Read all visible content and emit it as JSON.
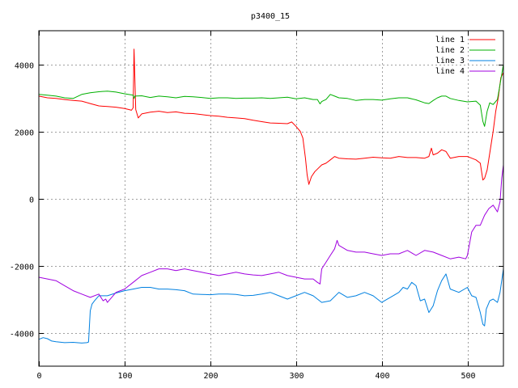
{
  "chart_data": {
    "type": "line",
    "title": "p3400_15",
    "xlabel": "",
    "ylabel": "",
    "xlim": [
      0,
      542
    ],
    "ylim": [
      -5000,
      5000
    ],
    "x_ticks": [
      0,
      100,
      200,
      300,
      400,
      500
    ],
    "y_ticks": [
      -4000,
      -2000,
      0,
      2000,
      4000
    ],
    "grid": true,
    "legend_position": "top-right",
    "series": [
      {
        "name": "line 1",
        "color": "#ff0000",
        "points": [
          [
            0,
            3050
          ],
          [
            10,
            3000
          ],
          [
            20,
            2980
          ],
          [
            30,
            2950
          ],
          [
            40,
            2920
          ],
          [
            50,
            2900
          ],
          [
            60,
            2830
          ],
          [
            70,
            2760
          ],
          [
            80,
            2740
          ],
          [
            90,
            2720
          ],
          [
            100,
            2680
          ],
          [
            105,
            2650
          ],
          [
            108,
            2630
          ],
          [
            110,
            2700
          ],
          [
            111,
            4450
          ],
          [
            112,
            3600
          ],
          [
            113,
            2650
          ],
          [
            116,
            2400
          ],
          [
            120,
            2520
          ],
          [
            130,
            2570
          ],
          [
            140,
            2600
          ],
          [
            150,
            2560
          ],
          [
            160,
            2580
          ],
          [
            170,
            2540
          ],
          [
            180,
            2530
          ],
          [
            190,
            2500
          ],
          [
            200,
            2470
          ],
          [
            210,
            2450
          ],
          [
            220,
            2420
          ],
          [
            230,
            2400
          ],
          [
            240,
            2380
          ],
          [
            250,
            2330
          ],
          [
            260,
            2290
          ],
          [
            270,
            2250
          ],
          [
            280,
            2240
          ],
          [
            290,
            2230
          ],
          [
            295,
            2280
          ],
          [
            300,
            2150
          ],
          [
            305,
            2000
          ],
          [
            308,
            1800
          ],
          [
            311,
            1200
          ],
          [
            313,
            700
          ],
          [
            315,
            420
          ],
          [
            318,
            650
          ],
          [
            322,
            800
          ],
          [
            326,
            900
          ],
          [
            330,
            1000
          ],
          [
            335,
            1050
          ],
          [
            340,
            1150
          ],
          [
            345,
            1250
          ],
          [
            350,
            1200
          ],
          [
            360,
            1180
          ],
          [
            370,
            1170
          ],
          [
            380,
            1200
          ],
          [
            390,
            1230
          ],
          [
            400,
            1210
          ],
          [
            410,
            1200
          ],
          [
            420,
            1250
          ],
          [
            430,
            1220
          ],
          [
            440,
            1220
          ],
          [
            450,
            1200
          ],
          [
            455,
            1250
          ],
          [
            458,
            1500
          ],
          [
            460,
            1300
          ],
          [
            465,
            1350
          ],
          [
            470,
            1450
          ],
          [
            475,
            1400
          ],
          [
            480,
            1200
          ],
          [
            490,
            1250
          ],
          [
            500,
            1250
          ],
          [
            505,
            1200
          ],
          [
            510,
            1150
          ],
          [
            515,
            1050
          ],
          [
            518,
            550
          ],
          [
            520,
            600
          ],
          [
            523,
            850
          ],
          [
            526,
            1350
          ],
          [
            530,
            2000
          ],
          [
            533,
            2600
          ],
          [
            536,
            3000
          ],
          [
            539,
            3600
          ],
          [
            542,
            3750
          ]
        ]
      },
      {
        "name": "line 2",
        "color": "#00b000",
        "points": [
          [
            0,
            3100
          ],
          [
            10,
            3080
          ],
          [
            20,
            3050
          ],
          [
            30,
            3000
          ],
          [
            40,
            2980
          ],
          [
            50,
            3100
          ],
          [
            60,
            3150
          ],
          [
            70,
            3180
          ],
          [
            80,
            3200
          ],
          [
            90,
            3170
          ],
          [
            100,
            3120
          ],
          [
            110,
            3080
          ],
          [
            111,
            2980
          ],
          [
            112,
            3050
          ],
          [
            120,
            3060
          ],
          [
            130,
            3010
          ],
          [
            140,
            3050
          ],
          [
            150,
            3030
          ],
          [
            160,
            3000
          ],
          [
            170,
            3040
          ],
          [
            180,
            3030
          ],
          [
            190,
            3010
          ],
          [
            200,
            2980
          ],
          [
            210,
            3000
          ],
          [
            220,
            3000
          ],
          [
            230,
            2980
          ],
          [
            240,
            2990
          ],
          [
            250,
            2990
          ],
          [
            260,
            3000
          ],
          [
            270,
            2980
          ],
          [
            280,
            3000
          ],
          [
            290,
            3020
          ],
          [
            300,
            2970
          ],
          [
            310,
            3000
          ],
          [
            320,
            2950
          ],
          [
            325,
            2950
          ],
          [
            328,
            2820
          ],
          [
            330,
            2890
          ],
          [
            335,
            2950
          ],
          [
            340,
            3100
          ],
          [
            345,
            3050
          ],
          [
            350,
            3000
          ],
          [
            360,
            2980
          ],
          [
            370,
            2920
          ],
          [
            380,
            2950
          ],
          [
            390,
            2950
          ],
          [
            400,
            2930
          ],
          [
            410,
            2970
          ],
          [
            420,
            3000
          ],
          [
            430,
            3000
          ],
          [
            440,
            2940
          ],
          [
            450,
            2850
          ],
          [
            455,
            2830
          ],
          [
            460,
            2920
          ],
          [
            465,
            3000
          ],
          [
            470,
            3050
          ],
          [
            475,
            3050
          ],
          [
            480,
            2980
          ],
          [
            490,
            2920
          ],
          [
            500,
            2880
          ],
          [
            510,
            2900
          ],
          [
            515,
            2780
          ],
          [
            518,
            2300
          ],
          [
            520,
            2150
          ],
          [
            523,
            2600
          ],
          [
            526,
            2850
          ],
          [
            530,
            2800
          ],
          [
            535,
            2950
          ],
          [
            538,
            3400
          ],
          [
            542,
            4000
          ]
        ]
      },
      {
        "name": "line 3",
        "color": "#0080e0",
        "points": [
          [
            0,
            -4200
          ],
          [
            5,
            -4150
          ],
          [
            10,
            -4180
          ],
          [
            15,
            -4250
          ],
          [
            20,
            -4270
          ],
          [
            30,
            -4300
          ],
          [
            40,
            -4290
          ],
          [
            50,
            -4310
          ],
          [
            56,
            -4300
          ],
          [
            58,
            -4280
          ],
          [
            60,
            -3350
          ],
          [
            62,
            -3150
          ],
          [
            65,
            -3050
          ],
          [
            70,
            -2900
          ],
          [
            80,
            -2900
          ],
          [
            90,
            -2820
          ],
          [
            100,
            -2750
          ],
          [
            110,
            -2700
          ],
          [
            120,
            -2650
          ],
          [
            130,
            -2650
          ],
          [
            140,
            -2700
          ],
          [
            150,
            -2700
          ],
          [
            160,
            -2720
          ],
          [
            170,
            -2750
          ],
          [
            180,
            -2850
          ],
          [
            190,
            -2860
          ],
          [
            200,
            -2870
          ],
          [
            210,
            -2850
          ],
          [
            220,
            -2850
          ],
          [
            230,
            -2860
          ],
          [
            240,
            -2900
          ],
          [
            250,
            -2890
          ],
          [
            260,
            -2850
          ],
          [
            270,
            -2800
          ],
          [
            280,
            -2900
          ],
          [
            290,
            -3000
          ],
          [
            300,
            -2900
          ],
          [
            310,
            -2800
          ],
          [
            320,
            -2900
          ],
          [
            330,
            -3100
          ],
          [
            340,
            -3050
          ],
          [
            350,
            -2800
          ],
          [
            360,
            -2950
          ],
          [
            370,
            -2900
          ],
          [
            380,
            -2800
          ],
          [
            390,
            -2900
          ],
          [
            400,
            -3100
          ],
          [
            410,
            -2950
          ],
          [
            420,
            -2800
          ],
          [
            425,
            -2650
          ],
          [
            430,
            -2700
          ],
          [
            435,
            -2500
          ],
          [
            440,
            -2600
          ],
          [
            445,
            -3050
          ],
          [
            450,
            -3000
          ],
          [
            455,
            -3400
          ],
          [
            460,
            -3200
          ],
          [
            465,
            -2750
          ],
          [
            470,
            -2450
          ],
          [
            475,
            -2250
          ],
          [
            480,
            -2700
          ],
          [
            490,
            -2800
          ],
          [
            500,
            -2650
          ],
          [
            505,
            -2900
          ],
          [
            510,
            -2950
          ],
          [
            515,
            -3400
          ],
          [
            518,
            -3750
          ],
          [
            520,
            -3800
          ],
          [
            522,
            -3300
          ],
          [
            526,
            -3050
          ],
          [
            530,
            -3000
          ],
          [
            535,
            -3100
          ],
          [
            538,
            -2800
          ],
          [
            542,
            -2100
          ]
        ]
      },
      {
        "name": "line 4",
        "color": "#a000e0",
        "points": [
          [
            0,
            -2350
          ],
          [
            10,
            -2400
          ],
          [
            20,
            -2450
          ],
          [
            30,
            -2600
          ],
          [
            40,
            -2750
          ],
          [
            50,
            -2850
          ],
          [
            60,
            -2950
          ],
          [
            70,
            -2850
          ],
          [
            75,
            -3050
          ],
          [
            78,
            -3000
          ],
          [
            80,
            -3100
          ],
          [
            85,
            -2950
          ],
          [
            90,
            -2800
          ],
          [
            100,
            -2700
          ],
          [
            110,
            -2500
          ],
          [
            120,
            -2300
          ],
          [
            130,
            -2200
          ],
          [
            140,
            -2100
          ],
          [
            150,
            -2100
          ],
          [
            160,
            -2150
          ],
          [
            170,
            -2100
          ],
          [
            180,
            -2150
          ],
          [
            190,
            -2200
          ],
          [
            200,
            -2250
          ],
          [
            210,
            -2300
          ],
          [
            220,
            -2250
          ],
          [
            230,
            -2200
          ],
          [
            240,
            -2250
          ],
          [
            250,
            -2280
          ],
          [
            260,
            -2300
          ],
          [
            270,
            -2250
          ],
          [
            280,
            -2200
          ],
          [
            290,
            -2300
          ],
          [
            300,
            -2350
          ],
          [
            310,
            -2400
          ],
          [
            320,
            -2400
          ],
          [
            325,
            -2500
          ],
          [
            328,
            -2550
          ],
          [
            330,
            -2100
          ],
          [
            335,
            -1900
          ],
          [
            340,
            -1700
          ],
          [
            345,
            -1500
          ],
          [
            348,
            -1250
          ],
          [
            350,
            -1400
          ],
          [
            360,
            -1550
          ],
          [
            370,
            -1600
          ],
          [
            380,
            -1600
          ],
          [
            390,
            -1650
          ],
          [
            400,
            -1700
          ],
          [
            410,
            -1650
          ],
          [
            420,
            -1650
          ],
          [
            430,
            -1550
          ],
          [
            440,
            -1700
          ],
          [
            450,
            -1550
          ],
          [
            460,
            -1600
          ],
          [
            470,
            -1700
          ],
          [
            480,
            -1800
          ],
          [
            490,
            -1750
          ],
          [
            498,
            -1800
          ],
          [
            500,
            -1700
          ],
          [
            505,
            -1000
          ],
          [
            510,
            -800
          ],
          [
            515,
            -800
          ],
          [
            520,
            -500
          ],
          [
            525,
            -300
          ],
          [
            530,
            -200
          ],
          [
            535,
            -400
          ],
          [
            538,
            -100
          ],
          [
            540,
            600
          ],
          [
            542,
            1000
          ]
        ]
      }
    ]
  }
}
